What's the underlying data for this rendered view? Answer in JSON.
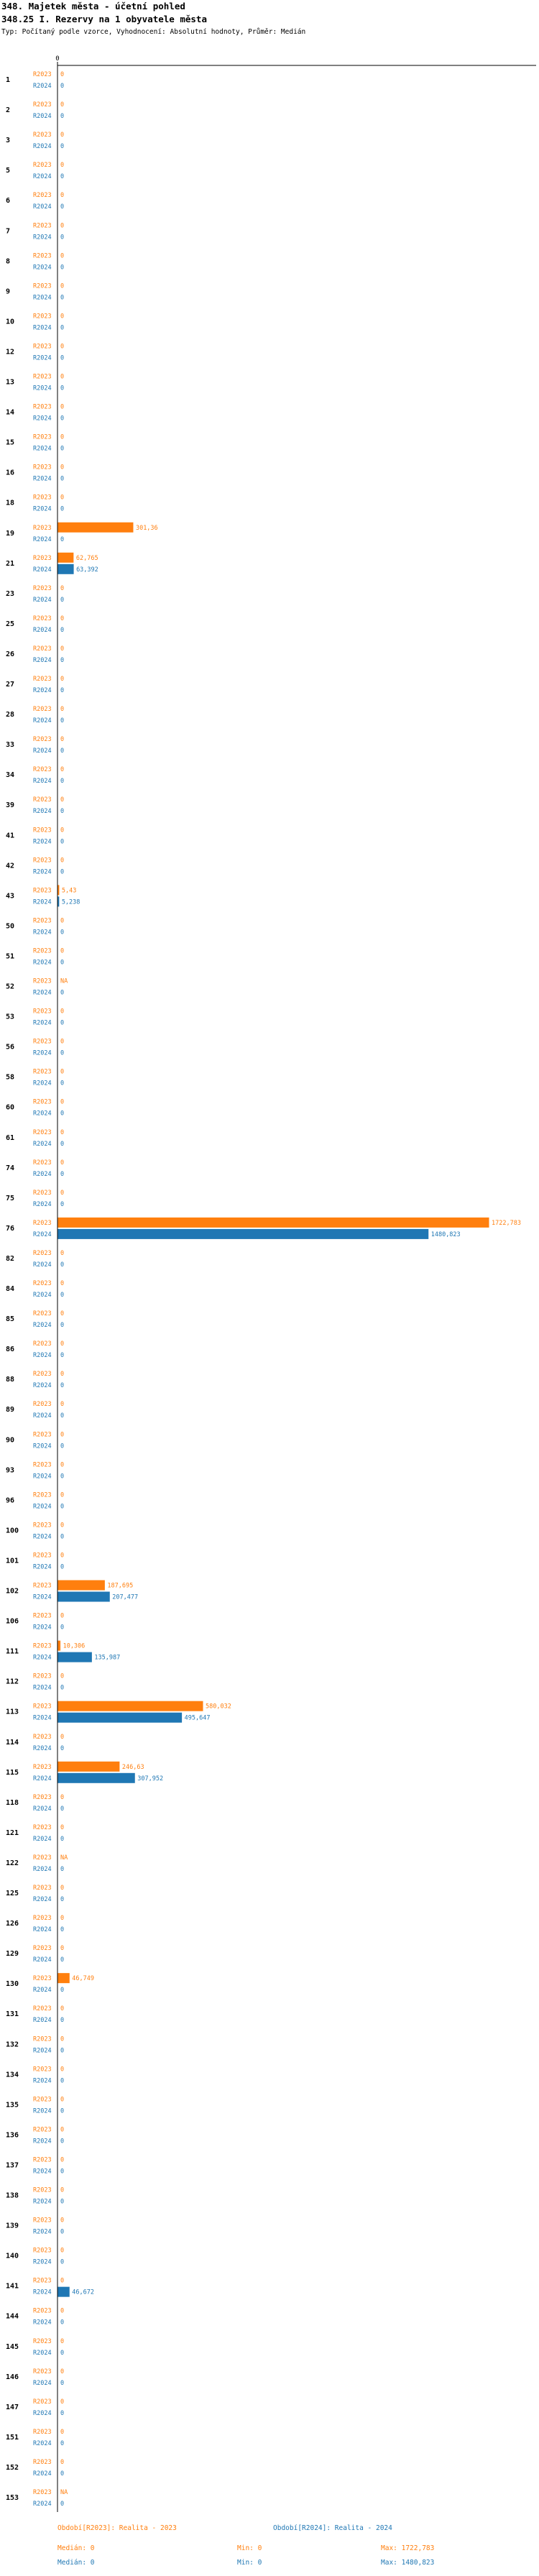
{
  "header": {
    "title1": "348. Majetek města - účetní pohled",
    "title2": "348.25 I. Rezervy na 1 obyvatele města",
    "subtitle": "Typ: Počítaný podle vzorce, Vyhodnocení: Absolutní hodnoty, Průměr: Medián"
  },
  "chart_data": {
    "type": "bar",
    "orientation": "horizontal",
    "xlim": [
      0,
      1722.783
    ],
    "x_tick_labels": [
      "0"
    ],
    "grid": false,
    "legend": "bottom",
    "series": [
      {
        "name": "R2023",
        "color": "#ff7f0e"
      },
      {
        "name": "R2024",
        "color": "#1f77b4"
      }
    ],
    "categories": [
      "1",
      "2",
      "3",
      "5",
      "6",
      "7",
      "8",
      "9",
      "10",
      "12",
      "13",
      "14",
      "15",
      "16",
      "18",
      "19",
      "21",
      "23",
      "25",
      "26",
      "27",
      "28",
      "33",
      "34",
      "39",
      "41",
      "42",
      "43",
      "50",
      "51",
      "52",
      "53",
      "56",
      "58",
      "60",
      "61",
      "74",
      "75",
      "76",
      "82",
      "84",
      "85",
      "86",
      "88",
      "89",
      "90",
      "93",
      "96",
      "100",
      "101",
      "102",
      "106",
      "111",
      "112",
      "113",
      "114",
      "115",
      "118",
      "121",
      "122",
      "125",
      "126",
      "129",
      "130",
      "131",
      "132",
      "134",
      "135",
      "136",
      "137",
      "138",
      "139",
      "140",
      "141",
      "144",
      "145",
      "146",
      "147",
      "151",
      "152",
      "153"
    ],
    "values_2023": [
      0,
      0,
      0,
      0,
      0,
      0,
      0,
      0,
      0,
      0,
      0,
      0,
      0,
      0,
      0,
      301.36,
      62.765,
      0,
      0,
      0,
      0,
      0,
      0,
      0,
      0,
      0,
      0,
      5.43,
      0,
      0,
      "NA",
      0,
      0,
      0,
      0,
      0,
      0,
      0,
      1722.783,
      0,
      0,
      0,
      0,
      0,
      0,
      0,
      0,
      0,
      0,
      0,
      187.695,
      0,
      10.306,
      0,
      580.032,
      0,
      246.63,
      0,
      0,
      "NA",
      0,
      0,
      0,
      46.749,
      0,
      0,
      0,
      0,
      0,
      0,
      0,
      0,
      0,
      0,
      0,
      0,
      0,
      0,
      0,
      0,
      "NA"
    ],
    "values_2024": [
      0,
      0,
      0,
      0,
      0,
      0,
      0,
      0,
      0,
      0,
      0,
      0,
      0,
      0,
      0,
      0,
      63.392,
      0,
      0,
      0,
      0,
      0,
      0,
      0,
      0,
      0,
      0,
      5.238,
      0,
      0,
      0,
      0,
      0,
      0,
      0,
      0,
      0,
      0,
      1480.823,
      0,
      0,
      0,
      0,
      0,
      0,
      0,
      0,
      0,
      0,
      0,
      207.477,
      0,
      135.987,
      0,
      495.647,
      0,
      307.952,
      0,
      0,
      0,
      0,
      0,
      0,
      0,
      0,
      0,
      0,
      0,
      0,
      0,
      0,
      0,
      0,
      46.672,
      0,
      0,
      0,
      0,
      0,
      0,
      0
    ],
    "labels_2023": [
      "0",
      "0",
      "0",
      "0",
      "0",
      "0",
      "0",
      "0",
      "0",
      "0",
      "0",
      "0",
      "0",
      "0",
      "0",
      "301,36",
      "62,765",
      "0",
      "0",
      "0",
      "0",
      "0",
      "0",
      "0",
      "0",
      "0",
      "0",
      "5,43",
      "0",
      "0",
      "NA",
      "0",
      "0",
      "0",
      "0",
      "0",
      "0",
      "0",
      "1722,783",
      "0",
      "0",
      "0",
      "0",
      "0",
      "0",
      "0",
      "0",
      "0",
      "0",
      "0",
      "187,695",
      "0",
      "10,306",
      "0",
      "580,032",
      "0",
      "246,63",
      "0",
      "0",
      "NA",
      "0",
      "0",
      "0",
      "46,749",
      "0",
      "0",
      "0",
      "0",
      "0",
      "0",
      "0",
      "0",
      "0",
      "0",
      "0",
      "0",
      "0",
      "0",
      "0",
      "0",
      "NA"
    ],
    "labels_2024": [
      "0",
      "0",
      "0",
      "0",
      "0",
      "0",
      "0",
      "0",
      "0",
      "0",
      "0",
      "0",
      "0",
      "0",
      "0",
      "0",
      "63,392",
      "0",
      "0",
      "0",
      "0",
      "0",
      "0",
      "0",
      "0",
      "0",
      "0",
      "5,238",
      "0",
      "0",
      "0",
      "0",
      "0",
      "0",
      "0",
      "0",
      "0",
      "0",
      "1480,823",
      "0",
      "0",
      "0",
      "0",
      "0",
      "0",
      "0",
      "0",
      "0",
      "0",
      "0",
      "207,477",
      "0",
      "135,987",
      "0",
      "495,647",
      "0",
      "307,952",
      "0",
      "0",
      "0",
      "0",
      "0",
      "0",
      "0",
      "0",
      "0",
      "0",
      "0",
      "0",
      "0",
      "0",
      "0",
      "0",
      "46,672",
      "0",
      "0",
      "0",
      "0",
      "0",
      "0",
      "0"
    ]
  },
  "footer": {
    "legend_2023": "Období[R2023]: Realita - 2023",
    "legend_2024": "Období[R2024]: Realita - 2024",
    "median_2023": "Medián: 0",
    "min_2023": "Min: 0",
    "max_2023": "Max: 1722,783",
    "median_2024": "Medián: 0",
    "min_2024": "Min: 0",
    "max_2024": "Max: 1480,823"
  }
}
